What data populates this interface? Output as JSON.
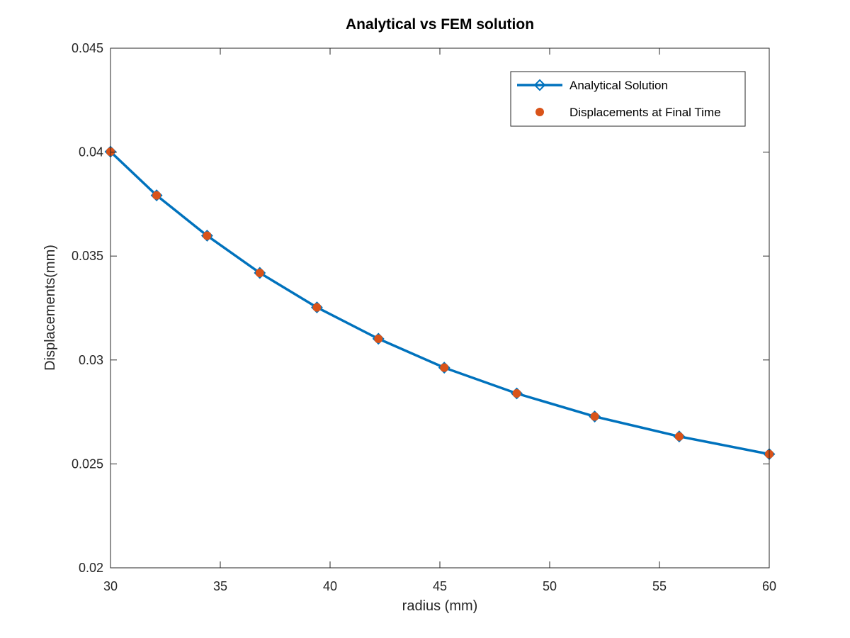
{
  "chart_data": {
    "type": "line",
    "title": "Analytical vs FEM solution",
    "xlabel": "radius (mm)",
    "ylabel": "Displacements(mm)",
    "xlim": [
      30,
      60
    ],
    "ylim": [
      0.02,
      0.045
    ],
    "xticks": [
      30,
      35,
      40,
      45,
      50,
      55,
      60
    ],
    "xtick_labels": [
      "30",
      "35",
      "40",
      "45",
      "50",
      "55",
      "60"
    ],
    "yticks": [
      0.02,
      0.025,
      0.03,
      0.035,
      0.04,
      0.045
    ],
    "ytick_labels": [
      "0.02",
      "0.025",
      "0.03",
      "0.035",
      "0.04",
      "0.045"
    ],
    "grid": false,
    "legend_position": "top-right",
    "series": [
      {
        "name": "Analytical Solution",
        "style": "line-diamond",
        "color": "#0072BD",
        "x": [
          30.0,
          32.1,
          34.4,
          36.8,
          39.4,
          42.2,
          45.2,
          48.5,
          52.05,
          55.9,
          60.0
        ],
        "y": [
          0.04002,
          0.03792,
          0.03598,
          0.03419,
          0.03253,
          0.03102,
          0.02963,
          0.02839,
          0.02728,
          0.02632,
          0.02547
        ]
      },
      {
        "name": "Displacements at Final Time",
        "style": "markers",
        "color": "#D95319",
        "x": [
          30.0,
          32.1,
          34.4,
          36.8,
          39.4,
          42.2,
          45.2,
          48.5,
          52.05,
          55.9,
          60.0
        ],
        "y": [
          0.04002,
          0.03792,
          0.03598,
          0.03419,
          0.03253,
          0.03102,
          0.02963,
          0.02839,
          0.02728,
          0.02632,
          0.02547
        ]
      }
    ]
  }
}
